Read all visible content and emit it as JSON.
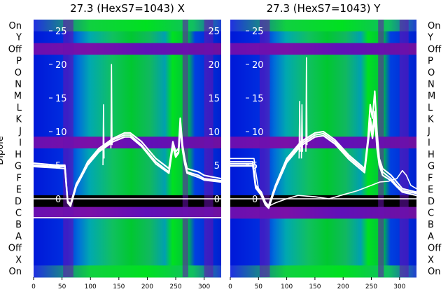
{
  "chart_data": [
    {
      "type": "heatmap",
      "title": "27.3 (HexS7=1043) X",
      "ylabel": "Dipole",
      "x_ticks": [
        0,
        50,
        100,
        150,
        200,
        250,
        300
      ],
      "xlim": [
        0,
        330
      ],
      "overlay_ticks": [
        25,
        20,
        15,
        10,
        5,
        0
      ],
      "overlay_ylim": [
        -2,
        28
      ],
      "dipole_labels": [
        "On",
        "Y",
        "Off",
        "P",
        "O",
        "N",
        "M",
        "L",
        "K",
        "J",
        "I",
        "H",
        "G",
        "F",
        "E",
        "D",
        "C",
        "B",
        "A",
        "Off",
        "X",
        "On"
      ],
      "series": [
        {
          "values": [
            [
              0,
              5.3
            ],
            [
              40,
              5.0
            ],
            [
              55,
              5.0
            ],
            [
              60,
              -0.5
            ],
            [
              65,
              -1.0
            ],
            [
              75,
              2.0
            ],
            [
              95,
              5.5
            ],
            [
              115,
              7.5
            ],
            [
              140,
              9.0
            ],
            [
              160,
              9.8
            ],
            [
              170,
              9.8
            ],
            [
              190,
              8.5
            ],
            [
              215,
              6.0
            ],
            [
              238,
              4.5
            ],
            [
              245,
              8.5
            ],
            [
              250,
              7.0
            ],
            [
              255,
              7.5
            ],
            [
              258,
              12.0
            ],
            [
              262,
              8.0
            ],
            [
              266,
              6.0
            ],
            [
              270,
              4.5
            ],
            [
              290,
              4.0
            ],
            [
              300,
              3.5
            ],
            [
              330,
              3.0
            ]
          ]
        },
        {
          "values": [
            [
              0,
              5.0
            ],
            [
              40,
              4.8
            ],
            [
              55,
              4.8
            ],
            [
              60,
              -0.3
            ],
            [
              65,
              -0.8
            ],
            [
              75,
              2.2
            ],
            [
              95,
              5.3
            ],
            [
              115,
              7.2
            ],
            [
              140,
              8.8
            ],
            [
              160,
              9.5
            ],
            [
              170,
              9.5
            ],
            [
              190,
              8.0
            ],
            [
              215,
              5.5
            ],
            [
              238,
              4.0
            ],
            [
              245,
              8.0
            ],
            [
              250,
              6.5
            ],
            [
              255,
              7.0
            ],
            [
              258,
              11.0
            ],
            [
              262,
              7.5
            ],
            [
              266,
              5.5
            ],
            [
              270,
              4.0
            ],
            [
              290,
              3.5
            ],
            [
              300,
              3.0
            ],
            [
              330,
              2.7
            ]
          ]
        },
        {
          "values": [
            [
              0,
              4.8
            ],
            [
              40,
              4.6
            ],
            [
              55,
              4.5
            ],
            [
              60,
              -0.6
            ],
            [
              65,
              -1.1
            ],
            [
              75,
              1.8
            ],
            [
              95,
              5.0
            ],
            [
              115,
              7.0
            ],
            [
              140,
              8.5
            ],
            [
              160,
              9.2
            ],
            [
              170,
              9.2
            ],
            [
              190,
              7.8
            ],
            [
              215,
              5.2
            ],
            [
              238,
              3.8
            ],
            [
              245,
              7.8
            ],
            [
              250,
              6.2
            ],
            [
              255,
              6.8
            ],
            [
              258,
              10.5
            ],
            [
              262,
              7.2
            ],
            [
              266,
              5.2
            ],
            [
              270,
              3.8
            ],
            [
              290,
              3.2
            ],
            [
              300,
              2.8
            ],
            [
              330,
              2.5
            ]
          ]
        },
        {
          "values": [
            [
              0,
              0.0
            ],
            [
              330,
              0.0
            ]
          ]
        },
        {
          "values": [
            [
              0,
              -2.8
            ],
            [
              330,
              -2.8
            ]
          ]
        },
        {
          "values": [
            [
              122,
              5.0
            ],
            [
              123,
              14.0
            ],
            [
              124,
              6.0
            ]
          ]
        },
        {
          "values": [
            [
              136,
              7.5
            ],
            [
              137,
              20.0
            ],
            [
              138,
              8.0
            ]
          ]
        }
      ]
    },
    {
      "type": "heatmap",
      "title": "27.3 (HexS7=1043) Y",
      "x_ticks": [
        0,
        50,
        100,
        150,
        200,
        250,
        300
      ],
      "xlim": [
        0,
        330
      ],
      "overlay_ticks": [
        25,
        20,
        15,
        10,
        5,
        0
      ],
      "overlay_ylim": [
        -2,
        28
      ],
      "dipole_labels": [
        "On",
        "Y",
        "Off",
        "P",
        "O",
        "N",
        "M",
        "L",
        "K",
        "J",
        "I",
        "H",
        "G",
        "F",
        "E",
        "D",
        "C",
        "B",
        "A",
        "Off",
        "X",
        "On"
      ],
      "series": [
        {
          "values": [
            [
              0,
              5.5
            ],
            [
              40,
              5.5
            ],
            [
              45,
              2.0
            ],
            [
              55,
              1.0
            ],
            [
              62,
              -0.5
            ],
            [
              68,
              -1.0
            ],
            [
              80,
              2.0
            ],
            [
              100,
              6.0
            ],
            [
              125,
              8.5
            ],
            [
              150,
              9.8
            ],
            [
              165,
              10.0
            ],
            [
              185,
              8.8
            ],
            [
              210,
              6.5
            ],
            [
              238,
              4.5
            ],
            [
              244,
              9.0
            ],
            [
              248,
              14.0
            ],
            [
              252,
              12.0
            ],
            [
              256,
              16.0
            ],
            [
              260,
              10.0
            ],
            [
              264,
              6.0
            ],
            [
              270,
              4.5
            ],
            [
              285,
              3.5
            ],
            [
              295,
              2.5
            ],
            [
              305,
              1.5
            ],
            [
              330,
              1.0
            ]
          ]
        },
        {
          "values": [
            [
              0,
              5.2
            ],
            [
              40,
              5.2
            ],
            [
              45,
              1.8
            ],
            [
              55,
              0.8
            ],
            [
              62,
              -0.7
            ],
            [
              68,
              -1.2
            ],
            [
              80,
              1.8
            ],
            [
              100,
              5.7
            ],
            [
              125,
              8.2
            ],
            [
              150,
              9.5
            ],
            [
              165,
              9.7
            ],
            [
              185,
              8.5
            ],
            [
              210,
              6.2
            ],
            [
              238,
              4.2
            ],
            [
              244,
              8.5
            ],
            [
              248,
              12.0
            ],
            [
              252,
              10.0
            ],
            [
              256,
              13.0
            ],
            [
              260,
              8.0
            ],
            [
              264,
              5.5
            ],
            [
              270,
              4.0
            ],
            [
              285,
              3.0
            ],
            [
              295,
              2.0
            ],
            [
              305,
              1.2
            ],
            [
              330,
              0.8
            ]
          ]
        },
        {
          "values": [
            [
              0,
              4.9
            ],
            [
              40,
              4.9
            ],
            [
              45,
              1.6
            ],
            [
              55,
              0.5
            ],
            [
              62,
              -0.9
            ],
            [
              68,
              -1.4
            ],
            [
              80,
              1.6
            ],
            [
              100,
              5.4
            ],
            [
              125,
              7.9
            ],
            [
              150,
              9.2
            ],
            [
              165,
              9.4
            ],
            [
              185,
              8.2
            ],
            [
              210,
              5.9
            ],
            [
              238,
              3.9
            ],
            [
              244,
              8.2
            ],
            [
              248,
              11.0
            ],
            [
              252,
              9.0
            ],
            [
              256,
              12.0
            ],
            [
              260,
              7.5
            ],
            [
              264,
              5.0
            ],
            [
              270,
              3.5
            ],
            [
              285,
              2.7
            ],
            [
              295,
              1.8
            ],
            [
              305,
              1.0
            ],
            [
              330,
              0.5
            ]
          ]
        },
        {
          "values": [
            [
              0,
              6.0
            ],
            [
              42,
              6.0
            ],
            [
              45,
              4.0
            ],
            [
              50,
              1.5
            ],
            [
              58,
              0.0
            ],
            [
              65,
              -1.2
            ],
            [
              80,
              -0.6
            ],
            [
              100,
              0.0
            ],
            [
              120,
              0.5
            ],
            [
              150,
              0.3
            ],
            [
              175,
              0.0
            ],
            [
              200,
              0.6
            ],
            [
              225,
              1.2
            ],
            [
              250,
              2.0
            ],
            [
              265,
              2.5
            ],
            [
              280,
              2.6
            ],
            [
              295,
              3.0
            ],
            [
              305,
              4.2
            ],
            [
              312,
              3.5
            ],
            [
              320,
              2.0
            ],
            [
              330,
              1.5
            ]
          ]
        },
        {
          "values": [
            [
              0,
              0.0
            ],
            [
              330,
              0.0
            ]
          ]
        },
        {
          "values": [
            [
              122,
              6.0
            ],
            [
              123,
              14.5
            ],
            [
              124,
              7.0
            ]
          ]
        },
        {
          "values": [
            [
              126,
              6.0
            ],
            [
              127,
              14.0
            ],
            [
              128,
              7.0
            ]
          ]
        },
        {
          "values": [
            [
              134,
              7.0
            ],
            [
              135,
              21.0
            ],
            [
              136,
              8.0
            ]
          ]
        }
      ]
    }
  ]
}
